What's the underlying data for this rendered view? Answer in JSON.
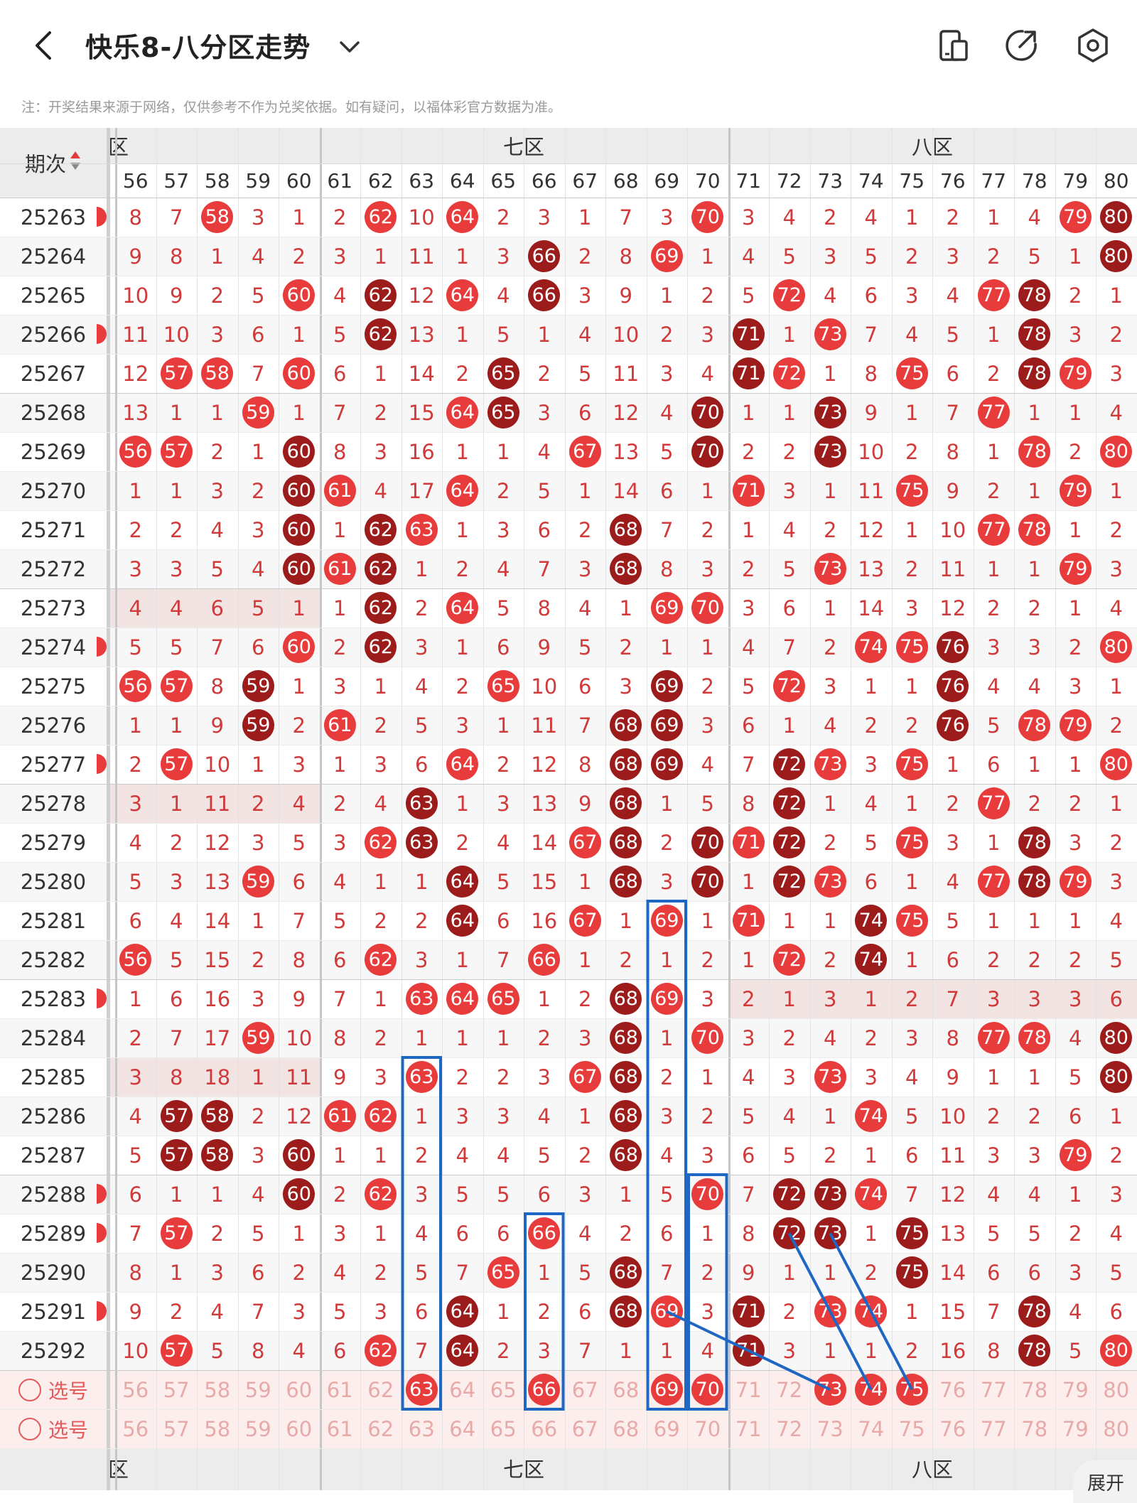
{
  "header": {
    "title": "快乐8-八分区走势",
    "icons": [
      "back-icon",
      "chevron-down-icon",
      "device-icon",
      "share-icon",
      "settings-icon"
    ]
  },
  "notice": "注：开奖结果来源于网络，仅供参考不作为兑奖依据。如有疑问，以福体彩官方数据为准。",
  "table": {
    "issue_header": "期次",
    "zones": [
      {
        "label": "六区",
        "shown": "区",
        "from": 56,
        "to": 60
      },
      {
        "label": "七区",
        "shown": "七区",
        "from": 61,
        "to": 70
      },
      {
        "label": "八区",
        "shown": "八区",
        "from": 71,
        "to": 80
      }
    ],
    "columns": [
      56,
      57,
      58,
      59,
      60,
      61,
      62,
      63,
      64,
      65,
      66,
      67,
      68,
      69,
      70,
      71,
      72,
      73,
      74,
      75,
      76,
      77,
      78,
      79,
      80
    ],
    "rows": [
      {
        "issue": "25263",
        "values": [
          8,
          7,
          58,
          3,
          1,
          2,
          62,
          10,
          64,
          2,
          3,
          1,
          7,
          3,
          70,
          3,
          4,
          2,
          4,
          1,
          2,
          1,
          4,
          79,
          80
        ]
      },
      {
        "issue": "25264",
        "values": [
          9,
          8,
          1,
          4,
          2,
          3,
          1,
          11,
          1,
          3,
          66,
          2,
          8,
          69,
          1,
          4,
          5,
          3,
          5,
          2,
          3,
          2,
          5,
          1,
          80
        ]
      },
      {
        "issue": "25265",
        "values": [
          10,
          9,
          2,
          5,
          60,
          4,
          62,
          12,
          64,
          4,
          66,
          3,
          9,
          1,
          2,
          5,
          72,
          4,
          6,
          3,
          4,
          77,
          78,
          2,
          1
        ]
      },
      {
        "issue": "25266",
        "values": [
          11,
          10,
          3,
          6,
          1,
          5,
          62,
          13,
          1,
          5,
          1,
          4,
          10,
          2,
          3,
          71,
          1,
          73,
          7,
          4,
          5,
          1,
          78,
          3,
          2
        ]
      },
      {
        "issue": "25267",
        "values": [
          12,
          57,
          58,
          7,
          60,
          6,
          1,
          14,
          2,
          65,
          2,
          5,
          11,
          3,
          4,
          71,
          72,
          1,
          8,
          75,
          6,
          2,
          78,
          79,
          3
        ]
      },
      {
        "issue": "25268",
        "values": [
          13,
          1,
          1,
          59,
          1,
          7,
          2,
          15,
          64,
          65,
          3,
          6,
          12,
          4,
          70,
          1,
          1,
          73,
          9,
          1,
          7,
          77,
          1,
          1,
          4
        ]
      },
      {
        "issue": "25269",
        "values": [
          56,
          57,
          2,
          1,
          60,
          8,
          3,
          16,
          1,
          1,
          4,
          67,
          13,
          5,
          70,
          2,
          2,
          73,
          10,
          2,
          8,
          1,
          78,
          2,
          80
        ]
      },
      {
        "issue": "25270",
        "values": [
          1,
          1,
          3,
          2,
          60,
          61,
          4,
          17,
          64,
          2,
          5,
          1,
          14,
          6,
          1,
          71,
          3,
          1,
          11,
          75,
          9,
          2,
          1,
          79,
          1
        ]
      },
      {
        "issue": "25271",
        "values": [
          2,
          2,
          4,
          3,
          60,
          1,
          62,
          63,
          1,
          3,
          6,
          2,
          68,
          7,
          2,
          1,
          4,
          2,
          12,
          1,
          10,
          77,
          78,
          1,
          2
        ]
      },
      {
        "issue": "25272",
        "values": [
          3,
          3,
          5,
          4,
          60,
          61,
          62,
          1,
          2,
          4,
          7,
          3,
          68,
          8,
          3,
          2,
          5,
          73,
          13,
          2,
          11,
          1,
          1,
          79,
          3
        ]
      },
      {
        "issue": "25273",
        "values": [
          4,
          4,
          6,
          5,
          1,
          1,
          62,
          2,
          64,
          5,
          8,
          4,
          1,
          69,
          70,
          3,
          6,
          1,
          14,
          3,
          12,
          2,
          2,
          1,
          4
        ]
      },
      {
        "issue": "25274",
        "values": [
          5,
          5,
          7,
          6,
          60,
          2,
          62,
          3,
          1,
          6,
          9,
          5,
          2,
          1,
          1,
          4,
          7,
          2,
          74,
          75,
          76,
          3,
          3,
          2,
          80
        ]
      },
      {
        "issue": "25275",
        "values": [
          56,
          57,
          8,
          59,
          1,
          3,
          1,
          4,
          2,
          65,
          10,
          6,
          3,
          69,
          2,
          5,
          72,
          3,
          1,
          1,
          76,
          4,
          4,
          3,
          1
        ]
      },
      {
        "issue": "25276",
        "values": [
          1,
          1,
          9,
          59,
          2,
          61,
          2,
          5,
          3,
          1,
          11,
          7,
          68,
          69,
          3,
          6,
          1,
          4,
          2,
          2,
          76,
          5,
          78,
          79,
          2
        ]
      },
      {
        "issue": "25277",
        "values": [
          2,
          57,
          10,
          1,
          3,
          1,
          3,
          6,
          64,
          2,
          12,
          8,
          68,
          69,
          4,
          7,
          72,
          73,
          3,
          75,
          1,
          6,
          1,
          1,
          80
        ]
      },
      {
        "issue": "25278",
        "values": [
          3,
          1,
          11,
          2,
          4,
          2,
          4,
          63,
          1,
          3,
          13,
          9,
          68,
          1,
          5,
          8,
          72,
          1,
          4,
          1,
          2,
          77,
          2,
          2,
          1
        ]
      },
      {
        "issue": "25279",
        "values": [
          4,
          2,
          12,
          3,
          5,
          3,
          62,
          63,
          2,
          4,
          14,
          67,
          68,
          2,
          70,
          71,
          72,
          2,
          5,
          75,
          3,
          1,
          78,
          3,
          2
        ]
      },
      {
        "issue": "25280",
        "values": [
          5,
          3,
          13,
          59,
          6,
          4,
          1,
          1,
          64,
          5,
          15,
          1,
          68,
          3,
          70,
          1,
          72,
          73,
          6,
          1,
          4,
          77,
          78,
          79,
          3
        ]
      },
      {
        "issue": "25281",
        "values": [
          6,
          4,
          14,
          1,
          7,
          5,
          2,
          2,
          64,
          6,
          16,
          67,
          1,
          69,
          1,
          71,
          1,
          1,
          74,
          75,
          5,
          1,
          1,
          1,
          4
        ]
      },
      {
        "issue": "25282",
        "values": [
          56,
          5,
          15,
          2,
          8,
          6,
          62,
          3,
          1,
          7,
          66,
          1,
          2,
          1,
          2,
          1,
          72,
          2,
          74,
          1,
          6,
          2,
          2,
          2,
          5
        ]
      },
      {
        "issue": "25283",
        "values": [
          1,
          6,
          16,
          3,
          9,
          7,
          1,
          63,
          64,
          65,
          1,
          2,
          68,
          69,
          3,
          2,
          1,
          3,
          1,
          2,
          7,
          3,
          3,
          3,
          6
        ]
      },
      {
        "issue": "25284",
        "values": [
          2,
          7,
          17,
          59,
          10,
          8,
          2,
          1,
          1,
          1,
          2,
          3,
          68,
          1,
          70,
          3,
          2,
          4,
          2,
          3,
          8,
          77,
          78,
          4,
          80
        ]
      },
      {
        "issue": "25285",
        "values": [
          3,
          8,
          18,
          1,
          11,
          9,
          3,
          63,
          2,
          2,
          3,
          67,
          68,
          2,
          1,
          4,
          3,
          73,
          3,
          4,
          9,
          1,
          1,
          5,
          80
        ]
      },
      {
        "issue": "25286",
        "values": [
          4,
          57,
          58,
          2,
          12,
          61,
          62,
          1,
          3,
          3,
          4,
          1,
          68,
          3,
          2,
          5,
          4,
          1,
          74,
          5,
          10,
          2,
          2,
          6,
          1
        ]
      },
      {
        "issue": "25287",
        "values": [
          5,
          57,
          58,
          3,
          60,
          1,
          1,
          2,
          4,
          4,
          5,
          2,
          68,
          4,
          3,
          6,
          5,
          2,
          1,
          6,
          11,
          3,
          3,
          79,
          2
        ]
      },
      {
        "issue": "25288",
        "values": [
          6,
          1,
          1,
          4,
          60,
          2,
          62,
          3,
          5,
          5,
          6,
          3,
          1,
          5,
          70,
          7,
          72,
          73,
          74,
          7,
          12,
          4,
          4,
          1,
          3
        ]
      },
      {
        "issue": "25289",
        "values": [
          7,
          57,
          2,
          5,
          1,
          3,
          1,
          4,
          6,
          6,
          66,
          4,
          2,
          6,
          1,
          8,
          72,
          73,
          1,
          75,
          13,
          5,
          5,
          2,
          4
        ]
      },
      {
        "issue": "25290",
        "values": [
          8,
          1,
          3,
          6,
          2,
          4,
          2,
          5,
          7,
          65,
          1,
          5,
          68,
          7,
          2,
          9,
          1,
          1,
          2,
          75,
          14,
          6,
          6,
          3,
          5
        ]
      },
      {
        "issue": "25291",
        "values": [
          9,
          2,
          4,
          7,
          3,
          5,
          3,
          6,
          64,
          1,
          2,
          6,
          68,
          69,
          3,
          71,
          2,
          73,
          74,
          1,
          15,
          7,
          78,
          4,
          6
        ]
      },
      {
        "issue": "25292",
        "values": [
          10,
          57,
          5,
          8,
          4,
          6,
          62,
          7,
          64,
          2,
          3,
          7,
          1,
          1,
          4,
          71,
          3,
          1,
          1,
          2,
          16,
          8,
          78,
          5,
          80
        ]
      }
    ],
    "highlight_rows": [
      "25273",
      "25278",
      "25283",
      "25285"
    ],
    "partial_left_rows": [
      "25263",
      "25266",
      "25274",
      "25277",
      "25283",
      "25288",
      "25289",
      "25291"
    ],
    "selection_rows": [
      {
        "label": "选号",
        "selected": [
          63,
          66,
          69,
          70,
          73,
          74,
          75
        ]
      },
      {
        "label": "选号",
        "selected": []
      }
    ]
  },
  "colors": {
    "ball_red": "#e83c3c",
    "ball_dark": "#9c1c1c",
    "number_text": "#d03a3a",
    "highlight_row": "#f3e4e4",
    "selection_bg": "#fdeeee",
    "annotation_blue": "#1e67c2"
  },
  "expand_label": "展开"
}
